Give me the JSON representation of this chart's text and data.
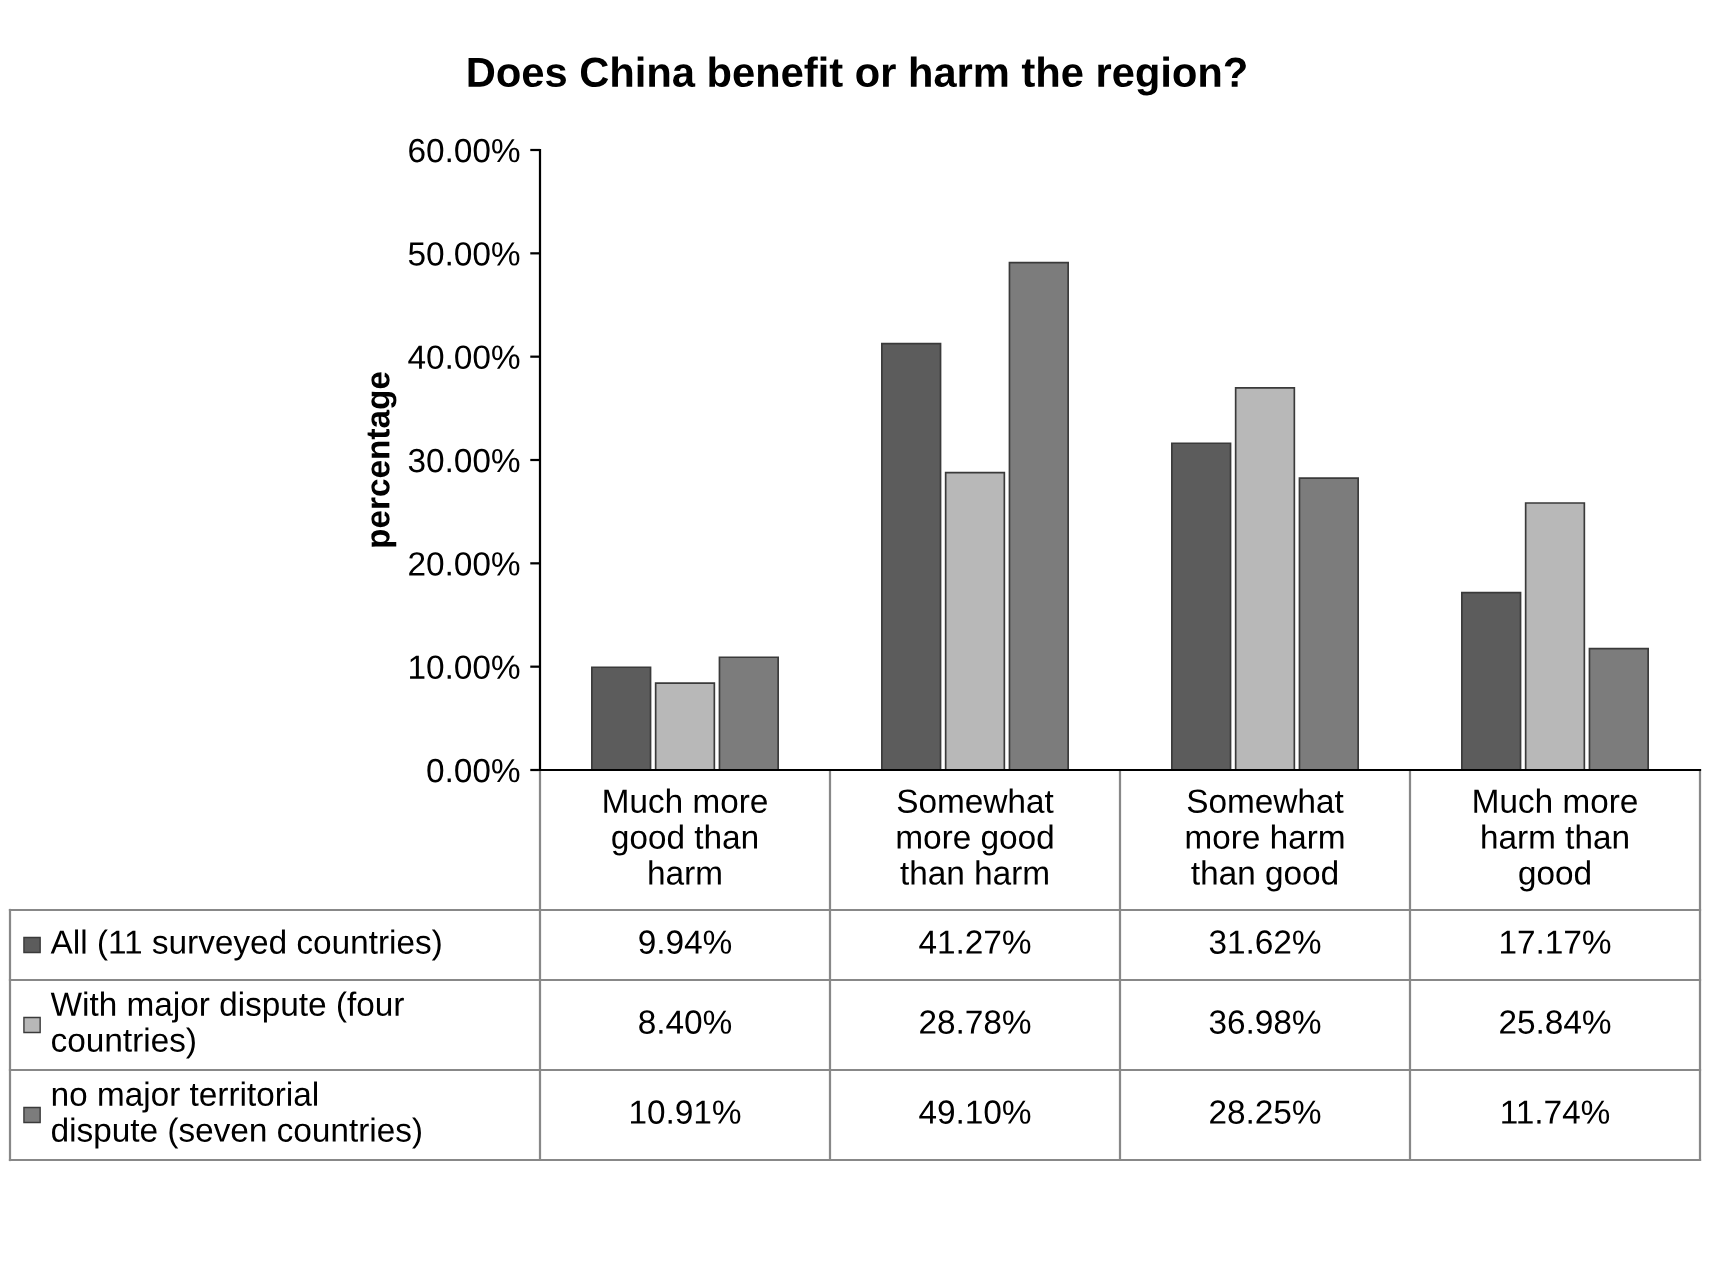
{
  "chart_data": {
    "type": "bar",
    "title": "Does China benefit or harm the region?",
    "ylabel": "percentage",
    "categories": [
      "Much more\ngood than\nharm",
      "Somewhat\nmore good\nthan harm",
      "Somewhat\nmore harm\nthan good",
      "Much more\nharm than\ngood"
    ],
    "series": [
      {
        "name": "All (11 surveyed countries)",
        "color": "#5c5c5c",
        "values": [
          9.94,
          41.27,
          31.62,
          17.17
        ],
        "value_labels": [
          "9.94%",
          "41.27%",
          "31.62%",
          "17.17%"
        ]
      },
      {
        "name": "With major dispute (four\ncountries)",
        "color": "#b8b8b8",
        "values": [
          8.4,
          28.78,
          36.98,
          25.84
        ],
        "value_labels": [
          "8.40%",
          "28.78%",
          "36.98%",
          "25.84%"
        ]
      },
      {
        "name": "no major territorial\ndispute (seven countries)",
        "color": "#7c7c7c",
        "values": [
          10.91,
          49.1,
          28.25,
          11.74
        ],
        "value_labels": [
          "10.91%",
          "49.10%",
          "28.25%",
          "11.74%"
        ]
      }
    ],
    "ylim": [
      0,
      60
    ],
    "yticks": [
      {
        "value": 0,
        "label": "0.00%"
      },
      {
        "value": 10,
        "label": "10.00%"
      },
      {
        "value": 20,
        "label": "20.00%"
      },
      {
        "value": 30,
        "label": "30.00%"
      },
      {
        "value": 40,
        "label": "40.00%"
      },
      {
        "value": 50,
        "label": "50.00%"
      },
      {
        "value": 60,
        "label": "60.00%"
      }
    ],
    "grid": false,
    "legend": "bottom left"
  }
}
